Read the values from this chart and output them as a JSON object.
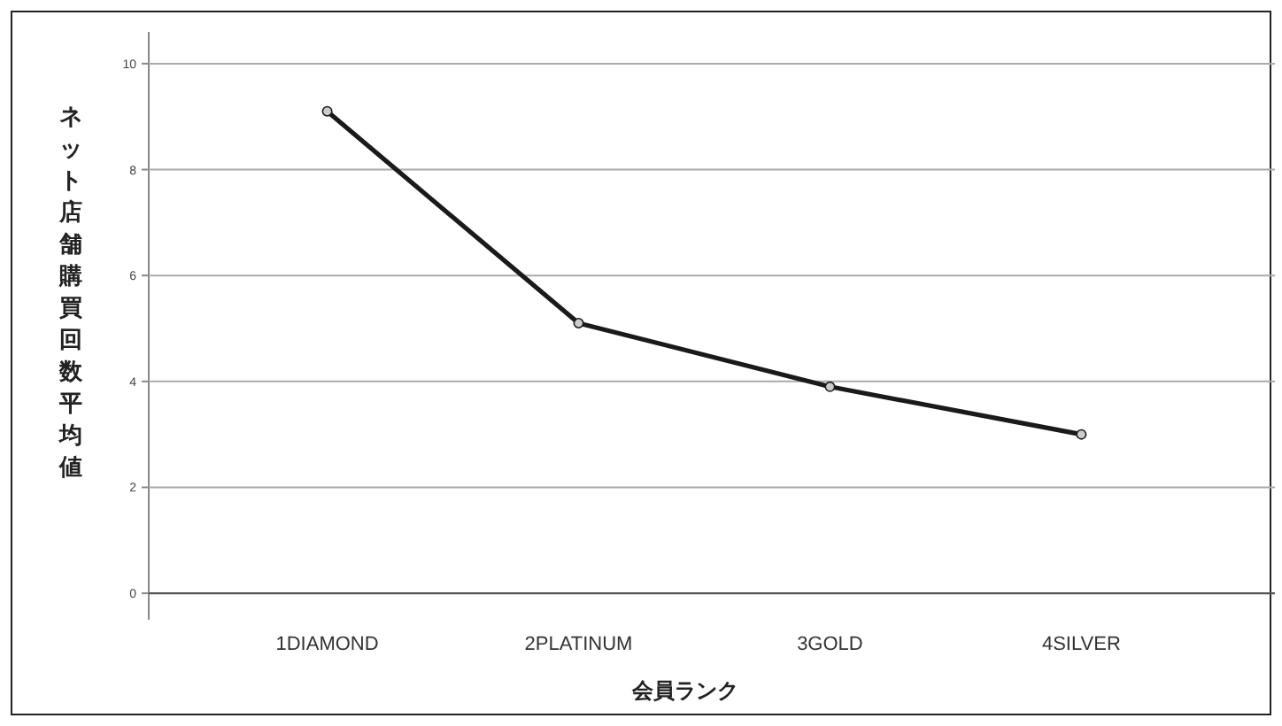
{
  "chart_data": {
    "type": "line",
    "xlabel": "会員ランク",
    "ylabel": "ネット店舗購買回数平均値",
    "categories": [
      "1DIAMOND",
      "2PLATINUM",
      "3GOLD",
      "4SILVER"
    ],
    "series": [
      {
        "color": "#1a1a1a",
        "values": [
          9.1,
          5.1,
          3.9,
          3.0
        ]
      }
    ],
    "ylim": [
      -0.5,
      10.6
    ],
    "yticks": [
      0,
      2,
      4,
      6,
      8,
      10
    ],
    "grid": "y",
    "marker": "circle",
    "line_style": "solid"
  }
}
